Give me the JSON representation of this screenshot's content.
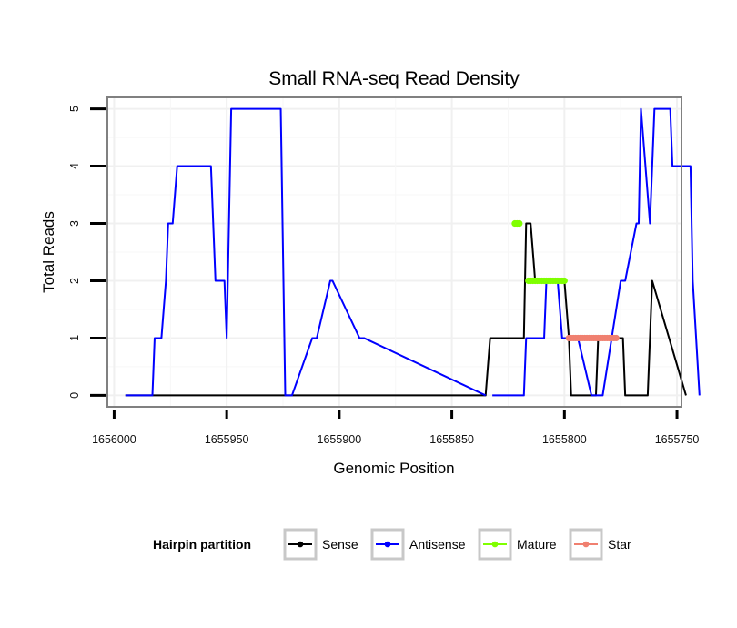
{
  "chart_data": {
    "type": "line",
    "title": "Small RNA-seq Read Density",
    "xlabel": "Genomic Position",
    "ylabel": "Total Reads",
    "xlim": [
      1656003,
      1655748
    ],
    "ylim": [
      -0.2,
      5.2
    ],
    "x_reversed": true,
    "x_ticks": [
      1656000,
      1655950,
      1655900,
      1655850,
      1655800,
      1655750
    ],
    "x_tick_labels": [
      "1656000",
      "1655950",
      "1655900",
      "1655850",
      "1655800",
      "1655750"
    ],
    "y_ticks": [
      0,
      1,
      2,
      3,
      4,
      5
    ],
    "y_tick_labels": [
      "0",
      "1",
      "2",
      "3",
      "4",
      "5"
    ],
    "grid": true,
    "legend": {
      "title": "Hairpin partition",
      "position": "bottom",
      "entries": [
        "Sense",
        "Antisense",
        "Mature",
        "Star"
      ]
    },
    "series": [
      {
        "name": "Sense",
        "color": "#000000",
        "style": "line",
        "x": [
          1655995,
          1655835,
          1655833,
          1655832,
          1655825,
          1655824,
          1655818,
          1655817,
          1655815,
          1655813,
          1655809,
          1655808,
          1655800,
          1655798,
          1655797,
          1655786,
          1655785,
          1655784,
          1655774,
          1655773,
          1655763,
          1655761,
          1655746
        ],
        "y": [
          0,
          0,
          1,
          1,
          1,
          1,
          1,
          3,
          3,
          2,
          2,
          2,
          2,
          1,
          0,
          0,
          1,
          1,
          1,
          0,
          0,
          2,
          0
        ]
      },
      {
        "name": "Antisense",
        "color": "#0000ff",
        "style": "line",
        "x": [
          1655995,
          1655983,
          1655982,
          1655979,
          1655977,
          1655976,
          1655974,
          1655972,
          1655971,
          1655957,
          1655955,
          1655951,
          1655950,
          1655948,
          1655926,
          1655924,
          1655921,
          1655912,
          1655910,
          1655904,
          1655903,
          1655891,
          1655889,
          1655835
        ],
        "y": [
          0,
          0,
          1,
          1,
          2,
          3,
          3,
          4,
          4,
          4,
          2,
          2,
          1,
          5,
          5,
          0,
          0,
          1,
          1,
          2,
          2,
          1,
          1,
          0
        ]
      },
      {
        "name": "Antisense-2",
        "color": "#0000ff",
        "style": "line",
        "x": [
          1655832,
          1655818,
          1655817,
          1655811,
          1655809,
          1655808,
          1655803,
          1655801,
          1655795,
          1655794,
          1655788,
          1655786,
          1655783,
          1655775,
          1655773,
          1655768,
          1655767,
          1655766,
          1655762,
          1655760,
          1655753,
          1655752,
          1655744,
          1655743,
          1655740
        ],
        "y": [
          0,
          0,
          1,
          1,
          1,
          2,
          2,
          1,
          1,
          1,
          0,
          0,
          0,
          2,
          2,
          3,
          3,
          5,
          3,
          5,
          5,
          4,
          4,
          2,
          0
        ]
      },
      {
        "name": "Mature",
        "color": "#7fff00",
        "style": "points",
        "x": [
          1655822,
          1655821,
          1655820
        ],
        "y": [
          3,
          3,
          3
        ]
      },
      {
        "name": "Mature-2",
        "color": "#7fff00",
        "style": "points",
        "x": [
          1655816,
          1655815,
          1655814,
          1655813,
          1655812,
          1655811,
          1655810,
          1655809,
          1655808,
          1655807,
          1655806,
          1655805,
          1655804,
          1655803,
          1655802,
          1655801,
          1655800
        ],
        "y": [
          2,
          2,
          2,
          2,
          2,
          2,
          2,
          2,
          2,
          2,
          2,
          2,
          2,
          2,
          2,
          2,
          2
        ]
      },
      {
        "name": "Star",
        "color": "#f08070",
        "style": "points",
        "x": [
          1655798,
          1655797,
          1655796,
          1655795,
          1655794,
          1655793,
          1655792,
          1655791,
          1655790,
          1655789,
          1655788,
          1655787,
          1655786,
          1655785,
          1655784,
          1655783,
          1655782,
          1655781,
          1655780,
          1655779,
          1655778,
          1655777
        ],
        "y": [
          1,
          1,
          1,
          1,
          1,
          1,
          1,
          1,
          1,
          1,
          1,
          1,
          1,
          1,
          1,
          1,
          1,
          1,
          1,
          1,
          1,
          1
        ]
      }
    ]
  }
}
